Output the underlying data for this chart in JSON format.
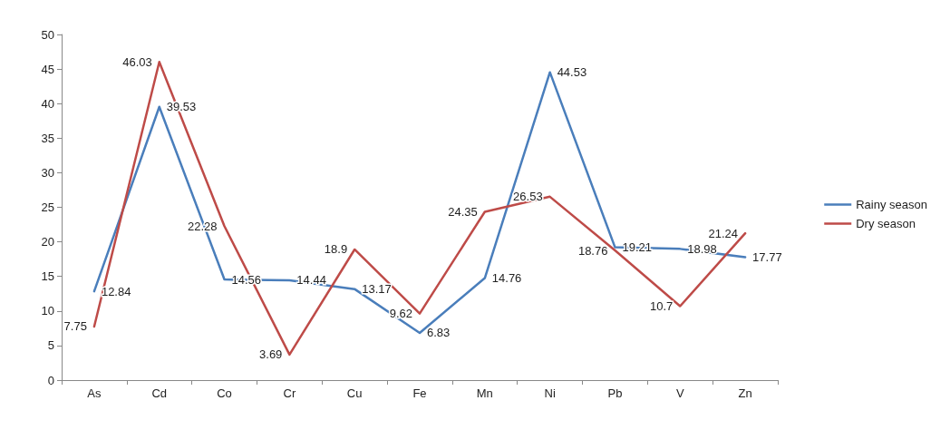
{
  "chart_data": {
    "type": "line",
    "categories": [
      "As",
      "Cd",
      "Co",
      "Cr",
      "Cu",
      "Fe",
      "Mn",
      "Ni",
      "Pb",
      "V",
      "Zn"
    ],
    "series": [
      {
        "name": "Rainy season",
        "color": "#4a7ebb",
        "values": [
          12.84,
          39.53,
          14.56,
          14.44,
          13.17,
          6.83,
          14.76,
          44.53,
          19.21,
          18.98,
          17.77
        ]
      },
      {
        "name": "Dry season",
        "color": "#be4b48",
        "values": [
          7.75,
          46.03,
          22.28,
          3.69,
          18.9,
          9.62,
          24.35,
          26.53,
          18.76,
          10.7,
          21.24
        ]
      }
    ],
    "ylim": [
      0,
      50
    ],
    "yticks": [
      0,
      5,
      10,
      15,
      20,
      25,
      30,
      35,
      40,
      45,
      50
    ],
    "grid": false,
    "legend": "right",
    "marker": "none",
    "line_style": "solid",
    "data_labels": true
  }
}
